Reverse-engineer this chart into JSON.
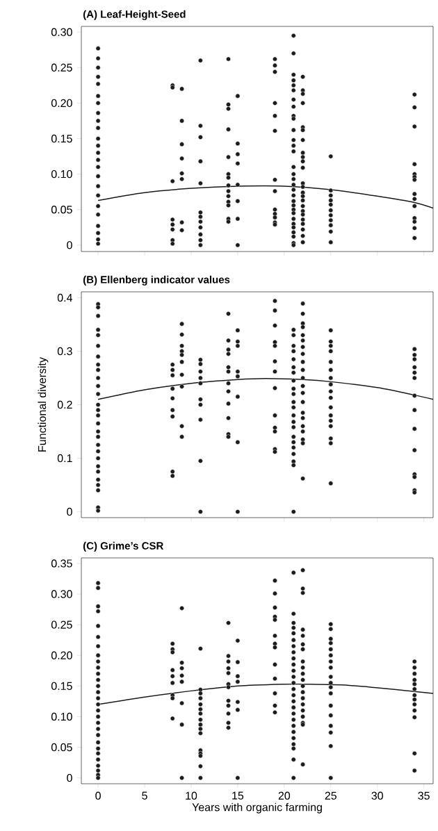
{
  "chart_data": [
    {
      "type": "scatter",
      "title": "(A) Leaf-Height-Seed",
      "tick_labels": "y",
      "xlim": [
        -1.8,
        36
      ],
      "xticks": [
        0,
        5,
        10,
        15,
        20,
        25,
        30,
        35
      ],
      "ylim": [
        -0.009,
        0.308
      ],
      "yticks": [
        0,
        0.05,
        {
          "value": 0.1,
          "label": "0.10"
        },
        0.15,
        {
          "value": 0.2,
          "label": "0.20"
        },
        0.25,
        {
          "value": 0.3,
          "label": "0.30"
        }
      ],
      "series": [
        {
          "marker": "circle",
          "color": "#1a1a1a",
          "x": [
            0,
            0,
            0,
            0,
            0,
            0,
            0,
            0,
            0,
            0,
            0,
            0,
            0,
            0,
            0,
            0,
            0,
            0,
            0,
            0,
            0,
            0,
            0,
            0,
            8,
            8,
            8,
            8,
            8,
            8,
            8,
            8,
            9,
            9,
            9,
            9,
            9,
            9,
            9,
            9,
            11,
            11,
            11,
            11,
            11,
            11,
            11,
            11,
            11,
            11,
            11,
            11,
            14,
            14,
            14,
            14,
            14,
            14,
            14,
            14,
            14,
            14,
            14,
            14,
            14,
            14,
            15,
            15,
            15,
            15,
            15,
            15,
            15,
            15,
            19,
            19,
            19,
            19,
            19,
            19,
            19,
            19,
            19,
            19,
            19,
            19,
            19,
            21,
            21,
            21,
            21,
            21,
            21,
            21,
            21,
            21,
            21,
            21,
            21,
            21,
            21,
            21,
            21,
            21,
            21,
            21,
            21,
            21,
            21,
            21,
            21,
            21,
            21,
            21,
            21,
            21,
            21,
            21,
            22,
            22,
            22,
            22,
            22,
            22,
            22,
            22,
            22,
            22,
            22,
            22,
            22,
            22,
            22,
            22,
            22,
            22,
            22,
            22,
            22,
            22,
            22,
            22,
            25,
            25,
            25,
            25,
            25,
            25,
            25,
            25,
            25,
            25,
            25,
            34,
            34,
            34,
            34,
            34,
            34,
            34,
            34,
            34,
            34,
            34,
            34,
            34,
            34
          ],
          "values": [
            0.277,
            0.263,
            0.25,
            0.237,
            0.227,
            0.21,
            0.2,
            0.186,
            0.175,
            0.165,
            0.15,
            0.14,
            0.13,
            0.12,
            0.11,
            0.097,
            0.083,
            0.07,
            0.055,
            0.043,
            0.027,
            0.017,
            0.008,
            0.002,
            0.225,
            0.222,
            0.09,
            0.036,
            0.029,
            0.022,
            0.007,
            0.002,
            0.22,
            0.175,
            0.142,
            0.122,
            0.101,
            0.093,
            0.032,
            0.021,
            0.26,
            0.168,
            0.152,
            0.118,
            0.087,
            0.046,
            0.04,
            0.033,
            0.025,
            0.015,
            0.007,
            0,
            0.262,
            0.198,
            0.192,
            0.163,
            0.124,
            0.1,
            0.095,
            0.084,
            0.076,
            0.069,
            0.061,
            0.056,
            0.037,
            0.033,
            0.21,
            0.143,
            0.128,
            0.115,
            0.085,
            0.062,
            0.037,
            0,
            0.262,
            0.253,
            0.244,
            0.2,
            0.182,
            0.161,
            0.092,
            0.076,
            0.05,
            0.044,
            0.039,
            0.032,
            0.029,
            0.295,
            0.27,
            0.24,
            0.232,
            0.225,
            0.218,
            0.205,
            0.195,
            0.182,
            0.178,
            0.162,
            0.148,
            0.14,
            0.132,
            0.11,
            0.1,
            0.093,
            0.085,
            0.078,
            0.07,
            0.062,
            0.056,
            0.05,
            0.045,
            0.037,
            0.03,
            0.025,
            0.018,
            0.012,
            0.003,
            0,
            0.237,
            0.218,
            0.213,
            0.2,
            0.166,
            0.162,
            0.148,
            0.13,
            0.124,
            0.118,
            0.109,
            0.087,
            0.082,
            0.074,
            0.069,
            0.063,
            0.055,
            0.048,
            0.043,
            0.036,
            0.03,
            0.022,
            0.013,
            0.004,
            0.125,
            0.077,
            0.07,
            0.063,
            0.057,
            0.049,
            0.042,
            0.035,
            0.028,
            0.019,
            0.004,
            0.212,
            0.194,
            0.167,
            0.114,
            0.1,
            0.096,
            0.092,
            0.072,
            0.065,
            0.055,
            0.038,
            0.033,
            0.024,
            0.01
          ]
        },
        {
          "type": "line",
          "color": "#1a1a1a",
          "x": [
            0,
            5,
            10,
            15,
            20,
            25,
            30,
            34,
            36
          ],
          "values": [
            0.063,
            0.074,
            0.08,
            0.083,
            0.083,
            0.078,
            0.069,
            0.06,
            0.052
          ]
        }
      ]
    },
    {
      "type": "scatter",
      "title": "(B) Ellenberg indicator values",
      "ylabel": "Functional diversity",
      "tick_labels": "y",
      "xlim": [
        -1.8,
        36
      ],
      "xticks": [
        0,
        5,
        10,
        15,
        20,
        25,
        30,
        35
      ],
      "ylim": [
        -0.011,
        0.411
      ],
      "yticks": [
        0,
        0.1,
        0.2,
        0.3,
        0.4
      ],
      "series": [
        {
          "marker": "circle",
          "color": "#1a1a1a",
          "x": [
            0,
            0,
            0,
            0,
            0,
            0,
            0,
            0,
            0,
            0,
            0,
            0,
            0,
            0,
            0,
            0,
            0,
            0,
            0,
            0,
            0,
            0,
            0,
            0,
            0,
            0,
            0,
            0,
            8,
            8,
            8,
            8,
            8,
            8,
            8,
            8,
            8,
            9,
            9,
            9,
            9,
            9,
            9,
            9,
            9,
            9,
            9,
            11,
            11,
            11,
            11,
            11,
            11,
            11,
            11,
            11,
            11,
            14,
            14,
            14,
            14,
            14,
            14,
            14,
            14,
            14,
            14,
            14,
            14,
            15,
            15,
            15,
            15,
            15,
            15,
            15,
            15,
            19,
            19,
            19,
            19,
            19,
            19,
            19,
            19,
            19,
            19,
            19,
            19,
            19,
            21,
            21,
            21,
            21,
            21,
            21,
            21,
            21,
            21,
            21,
            21,
            21,
            21,
            21,
            21,
            21,
            21,
            21,
            21,
            21,
            21,
            21,
            22,
            22,
            22,
            22,
            22,
            22,
            22,
            22,
            22,
            22,
            22,
            22,
            22,
            22,
            22,
            22,
            22,
            22,
            22,
            22,
            22,
            25,
            25,
            25,
            25,
            25,
            25,
            25,
            25,
            25,
            25,
            25,
            25,
            25,
            25,
            25,
            25,
            25,
            34,
            34,
            34,
            34,
            34,
            34,
            34,
            34,
            34,
            34,
            34,
            34,
            34,
            34
          ],
          "values": [
            0.388,
            0.382,
            0.366,
            0.34,
            0.33,
            0.31,
            0.29,
            0.275,
            0.265,
            0.25,
            0.235,
            0.22,
            0.2,
            0.19,
            0.18,
            0.165,
            0.15,
            0.14,
            0.125,
            0.113,
            0.1,
            0.085,
            0.075,
            0.06,
            0.05,
            0.04,
            0.008,
            0.002,
            0.275,
            0.265,
            0.255,
            0.23,
            0.212,
            0.19,
            0.178,
            0.075,
            0.067,
            0.351,
            0.331,
            0.31,
            0.3,
            0.293,
            0.28,
            0.256,
            0.234,
            0.16,
            0.14,
            0.284,
            0.276,
            0.262,
            0.25,
            0.24,
            0.21,
            0.2,
            0.172,
            0.095,
            0,
            0.37,
            0.32,
            0.303,
            0.295,
            0.27,
            0.262,
            0.24,
            0.225,
            0.202,
            0.175,
            0.145,
            0.14,
            0.339,
            0.318,
            0.31,
            0.262,
            0.253,
            0.215,
            0.13,
            0,
            0.394,
            0.376,
            0.348,
            0.317,
            0.31,
            0.281,
            0.262,
            0.231,
            0.18,
            0.157,
            0.15,
            0.117,
            0.112,
            0.34,
            0.33,
            0.31,
            0.3,
            0.285,
            0.27,
            0.26,
            0.245,
            0.23,
            0.22,
            0.205,
            0.195,
            0.18,
            0.168,
            0.158,
            0.14,
            0.13,
            0.12,
            0.108,
            0.094,
            0.087,
            0,
            0.389,
            0.37,
            0.352,
            0.345,
            0.33,
            0.32,
            0.308,
            0.295,
            0.28,
            0.265,
            0.25,
            0.235,
            0.222,
            0.205,
            0.185,
            0.175,
            0.16,
            0.15,
            0.135,
            0.128,
            0.062,
            0.339,
            0.318,
            0.31,
            0.3,
            0.28,
            0.265,
            0.25,
            0.238,
            0.225,
            0.213,
            0.195,
            0.18,
            0.17,
            0.16,
            0.137,
            0.128,
            0.053,
            0.304,
            0.293,
            0.285,
            0.27,
            0.26,
            0.25,
            0.217,
            0.19,
            0.155,
            0.115,
            0.07,
            0.065,
            0.04,
            0.036
          ]
        },
        {
          "type": "line",
          "color": "#1a1a1a",
          "x": [
            0,
            5,
            10,
            15,
            18,
            22,
            25,
            30,
            34,
            36
          ],
          "values": [
            0.21,
            0.228,
            0.24,
            0.247,
            0.249,
            0.247,
            0.243,
            0.232,
            0.218,
            0.21
          ]
        }
      ]
    },
    {
      "type": "scatter",
      "title": "(C) Grime’s CSR",
      "xlabel": "Years with organic farming",
      "xlim": [
        -1.8,
        36
      ],
      "xticks": [
        0,
        5,
        10,
        15,
        20,
        25,
        30,
        35
      ],
      "ylim": [
        -0.0095,
        0.359
      ],
      "yticks": [
        0,
        0.05,
        {
          "value": 0.1,
          "label": "0.10"
        },
        0.15,
        {
          "value": 0.2,
          "label": "0.20"
        },
        0.25,
        {
          "value": 0.3,
          "label": "0.30"
        },
        0.35
      ],
      "series": [
        {
          "marker": "circle",
          "color": "#1a1a1a",
          "x": [
            0,
            0,
            0,
            0,
            0,
            0,
            0,
            0,
            0,
            0,
            0,
            0,
            0,
            0,
            0,
            0,
            0,
            0,
            0,
            0,
            0,
            0,
            0,
            0,
            0,
            0,
            0,
            0,
            0,
            8,
            8,
            8,
            8,
            8,
            8,
            8,
            8,
            8,
            9,
            9,
            9,
            9,
            9,
            9,
            9,
            9,
            11,
            11,
            11,
            11,
            11,
            11,
            11,
            11,
            11,
            11,
            11,
            11,
            11,
            11,
            11,
            11,
            14,
            14,
            14,
            14,
            14,
            14,
            14,
            14,
            14,
            14,
            14,
            14,
            15,
            15,
            15,
            15,
            15,
            15,
            15,
            19,
            19,
            19,
            19,
            19,
            19,
            19,
            19,
            19,
            19,
            19,
            19,
            19,
            21,
            21,
            21,
            21,
            21,
            21,
            21,
            21,
            21,
            21,
            21,
            21,
            21,
            21,
            21,
            21,
            21,
            21,
            21,
            21,
            21,
            21,
            21,
            21,
            21,
            21,
            22,
            22,
            22,
            22,
            22,
            22,
            22,
            22,
            22,
            22,
            22,
            22,
            22,
            22,
            22,
            22,
            22,
            22,
            22,
            22,
            25,
            25,
            25,
            25,
            25,
            25,
            25,
            25,
            25,
            25,
            25,
            25,
            25,
            25,
            25,
            25,
            25,
            25,
            34,
            34,
            34,
            34,
            34,
            34,
            34,
            34,
            34,
            34,
            34,
            34,
            34
          ],
          "values": [
            0.318,
            0.31,
            0.28,
            0.272,
            0.248,
            0.23,
            0.215,
            0.2,
            0.19,
            0.18,
            0.17,
            0.16,
            0.15,
            0.14,
            0.13,
            0.12,
            0.11,
            0.1,
            0.09,
            0.08,
            0.07,
            0.058,
            0.048,
            0.04,
            0.03,
            0.02,
            0.012,
            0.005,
            0,
            0.219,
            0.21,
            0.205,
            0.176,
            0.166,
            0.155,
            0.135,
            0.13,
            0.097,
            0.277,
            0.188,
            0.179,
            0.167,
            0.157,
            0.122,
            0.087,
            0,
            0.211,
            0.144,
            0.138,
            0.13,
            0.12,
            0.112,
            0.105,
            0.095,
            0.087,
            0.08,
            0.073,
            0.045,
            0.04,
            0.036,
            0.019,
            0,
            0.253,
            0.199,
            0.19,
            0.179,
            0.171,
            0.153,
            0.148,
            0.126,
            0.118,
            0.105,
            0.09,
            0.082,
            0.224,
            0.189,
            0.166,
            0.157,
            0.124,
            0.111,
            0,
            0.322,
            0.301,
            0.278,
            0.263,
            0.258,
            0.232,
            0.219,
            0.213,
            0.185,
            0.162,
            0.138,
            0.118,
            0.107,
            0.335,
            0.268,
            0.253,
            0.245,
            0.236,
            0.225,
            0.215,
            0.205,
            0.195,
            0.185,
            0.175,
            0.165,
            0.155,
            0.145,
            0.135,
            0.125,
            0.115,
            0.105,
            0.095,
            0.085,
            0.075,
            0.065,
            0.055,
            0.048,
            0.03,
            0,
            0.339,
            0.309,
            0.302,
            0.242,
            0.232,
            0.218,
            0.21,
            0.19,
            0.18,
            0.17,
            0.16,
            0.15,
            0.14,
            0.13,
            0.12,
            0.11,
            0.1,
            0.09,
            0.087,
            0.022,
            0.251,
            0.243,
            0.227,
            0.22,
            0.21,
            0.2,
            0.19,
            0.18,
            0.165,
            0.155,
            0.148,
            0.138,
            0.118,
            0.102,
            0.085,
            0.074,
            0.052,
            0,
            0.19,
            0.18,
            0.17,
            0.16,
            0.153,
            0.145,
            0.135,
            0.128,
            0.12,
            0.11,
            0.099,
            0.04,
            0.012
          ]
        },
        {
          "type": "line",
          "color": "#1a1a1a",
          "x": [
            0,
            5,
            10,
            15,
            20,
            22,
            27,
            34,
            36
          ],
          "values": [
            0.12,
            0.132,
            0.142,
            0.15,
            0.153,
            0.153,
            0.151,
            0.141,
            0.138
          ]
        }
      ]
    }
  ]
}
